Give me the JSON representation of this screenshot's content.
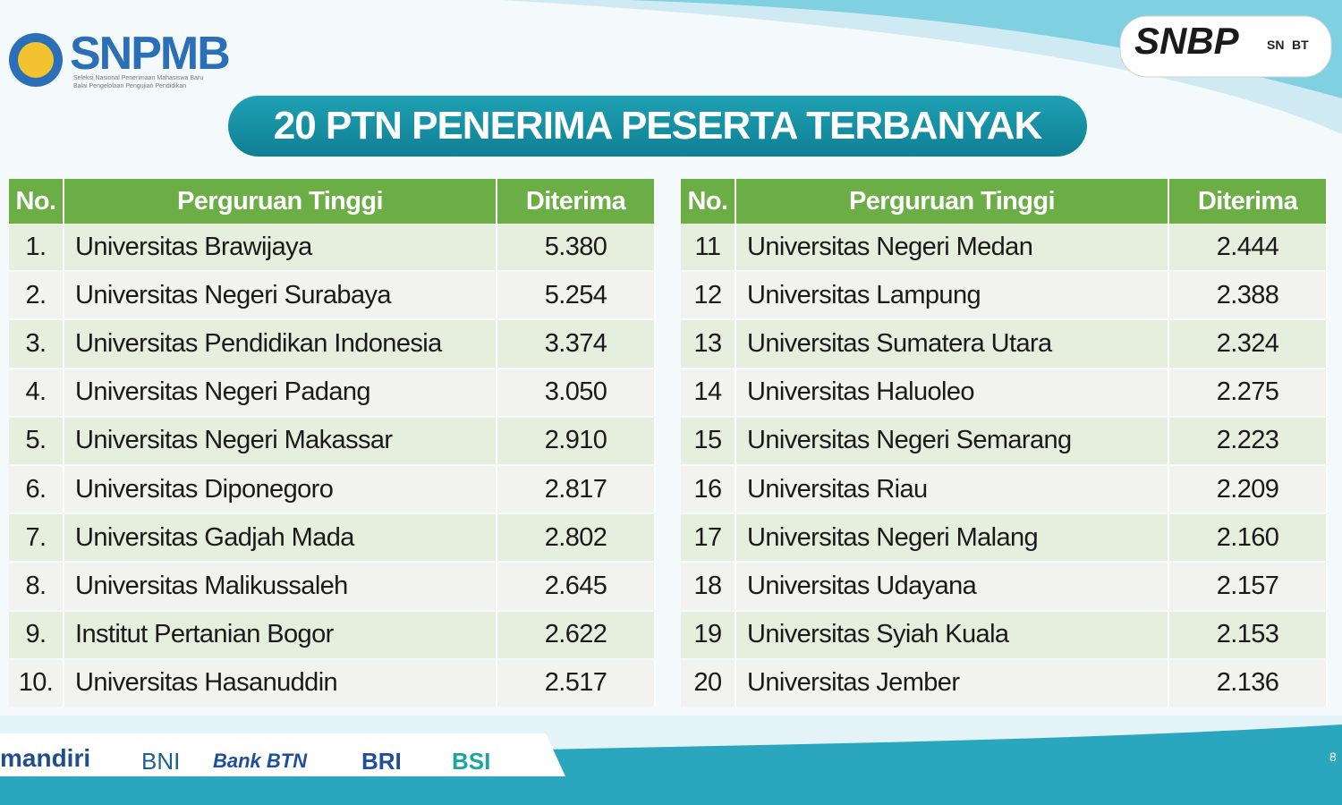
{
  "header": {
    "logo": {
      "name": "SNPMB",
      "subtitle_1": "Seleksi Nasional Penerimaan Mahasiswa Baru",
      "subtitle_2": "Balai Pengelolaan Pengujian Pendidikan"
    },
    "badges": [
      "SNBP",
      "SN",
      "BT"
    ]
  },
  "title": "20 PTN PENERIMA PESERTA TERBANYAK",
  "tables": [
    {
      "columns": [
        "No.",
        "Perguruan Tinggi",
        "Diterima"
      ],
      "rows": [
        [
          "1.",
          "Universitas Brawijaya",
          "5.380"
        ],
        [
          "2.",
          "Universitas Negeri Surabaya",
          "5.254"
        ],
        [
          "3.",
          "Universitas Pendidikan Indonesia",
          "3.374"
        ],
        [
          "4.",
          "Universitas Negeri Padang",
          "3.050"
        ],
        [
          "5.",
          "Universitas Negeri Makassar",
          "2.910"
        ],
        [
          "6.",
          "Universitas Diponegoro",
          "2.817"
        ],
        [
          "7.",
          "Universitas Gadjah Mada",
          "2.802"
        ],
        [
          "8.",
          "Universitas Malikussaleh",
          "2.645"
        ],
        [
          "9.",
          "Institut Pertanian Bogor",
          "2.622"
        ],
        [
          "10.",
          "Universitas Hasanuddin",
          "2.517"
        ]
      ]
    },
    {
      "columns": [
        "No.",
        "Perguruan Tinggi",
        "Diterima"
      ],
      "rows": [
        [
          "11",
          "Universitas Negeri Medan",
          "2.444"
        ],
        [
          "12",
          "Universitas Lampung",
          "2.388"
        ],
        [
          "13",
          "Universitas Sumatera Utara",
          "2.324"
        ],
        [
          "14",
          "Universitas Haluoleo",
          "2.275"
        ],
        [
          "15",
          "Universitas Negeri Semarang",
          "2.223"
        ],
        [
          "16",
          "Universitas Riau",
          "2.209"
        ],
        [
          "17",
          "Universitas Negeri Malang",
          "2.160"
        ],
        [
          "18",
          "Universitas Udayana",
          "2.157"
        ],
        [
          "19",
          "Universitas Syiah Kuala",
          "2.153"
        ],
        [
          "20",
          "Universitas Jember",
          "2.136"
        ]
      ]
    }
  ],
  "footer": {
    "sponsors": [
      "mandiri",
      "BNI",
      "Bank BTN",
      "BRI",
      "BSI"
    ],
    "page_number": "8"
  }
}
